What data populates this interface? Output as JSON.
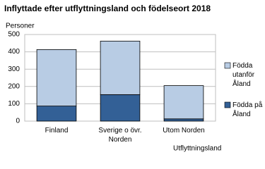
{
  "chart_data": {
    "type": "bar",
    "stacked": true,
    "title": "Inflyttade efter utflyttningsland och födelseort 2018",
    "y_label": "Personer",
    "x_label": "Utflyttningsland",
    "categories": [
      "Finland",
      "Sverige o övr. Norden",
      "Utom Norden"
    ],
    "series": [
      {
        "name": "Födda på Åland",
        "color": "#336096",
        "values": [
          87,
          153,
          13
        ]
      },
      {
        "name": "Födda utanför Åland",
        "color": "#b8cce4",
        "values": [
          326,
          309,
          192
        ]
      }
    ],
    "ylim": [
      0,
      500
    ],
    "yticks": [
      0,
      100,
      200,
      300,
      400,
      500
    ],
    "grid": true,
    "legend": "right"
  }
}
